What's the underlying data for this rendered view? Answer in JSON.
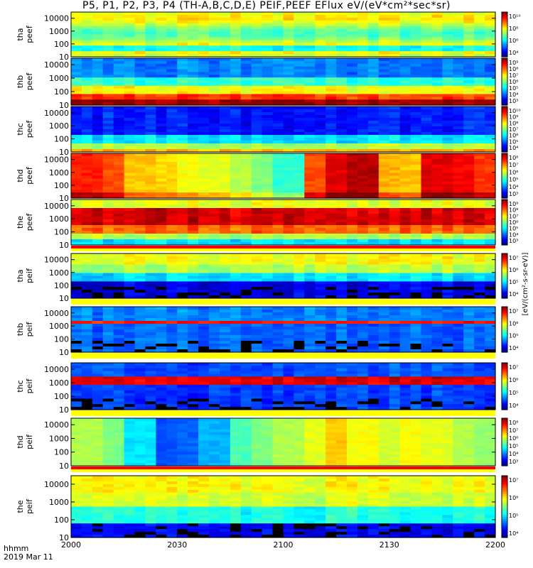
{
  "title": "P5, P1, P2, P3, P4 (TH-A,B,C,D,E) PEIF,PEEF EFlux eV/(eV*cm²*sec*sr)",
  "footer": {
    "time_format": "hhmm",
    "date": "2019 Mar 11"
  },
  "chart_data": {
    "type": "heatmap",
    "x_ticks": [
      "2000",
      "2030",
      "2100",
      "2130",
      "2200"
    ],
    "y_ticks": [
      "10",
      "100",
      "1000",
      "10000"
    ],
    "y_scale": "log",
    "colorbar_unit": "[eV/(cm²-s-sr-eV)]",
    "panels": [
      {
        "label": "tha peef",
        "cbar_max": "10¹⁰",
        "cbar_ticks": [
          "10¹⁰",
          "10⁸",
          "10⁶",
          "10⁴"
        ]
      },
      {
        "label": "thb peef",
        "cbar_ticks": [
          "10⁹",
          "10⁸",
          "10⁷",
          "10⁶",
          "10⁵",
          "10⁴",
          "10³"
        ]
      },
      {
        "label": "thc peef",
        "cbar_ticks": [
          "10¹⁰",
          "10⁹",
          "10⁸",
          "10⁷",
          "10⁶",
          "10⁵",
          "10⁴"
        ]
      },
      {
        "label": "thd peef",
        "cbar_ticks": [
          "10⁸",
          "10⁷",
          "10⁶",
          "10⁵",
          "10⁴",
          "10³"
        ]
      },
      {
        "label": "the peef",
        "cbar_ticks": [
          "10⁹",
          "10⁸",
          "10⁷",
          "10⁶",
          "10⁵",
          "10⁴",
          "10³"
        ]
      },
      {
        "label": "tha peif",
        "cbar_ticks": [
          "10⁷",
          "10⁶",
          "10⁵",
          "10⁴"
        ]
      },
      {
        "label": "thb peif",
        "cbar_ticks": [
          "10⁷",
          "10⁶",
          "10⁵",
          "10⁴"
        ]
      },
      {
        "label": "thc peif",
        "cbar_ticks": [
          "10⁷",
          "10⁶",
          "10⁵",
          "10⁴"
        ]
      },
      {
        "label": "thd peif",
        "cbar_ticks": [
          "10⁸",
          "10⁷",
          "10⁶",
          "10⁵",
          "10⁴",
          "10³"
        ]
      },
      {
        "label": "the peif",
        "cbar_ticks": [
          "10⁷",
          "10⁶",
          "10⁵",
          "10⁴"
        ]
      }
    ]
  }
}
